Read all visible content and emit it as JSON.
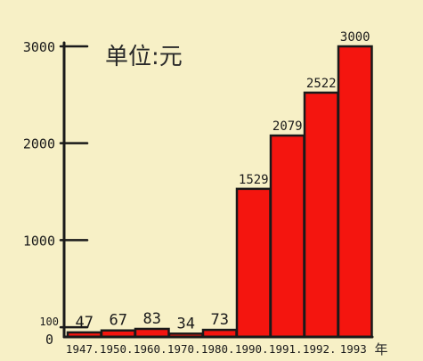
{
  "chart_data": {
    "type": "bar",
    "title": "单位:元",
    "categories": [
      "1947",
      "1950",
      "1960",
      "1970",
      "1980",
      "1990",
      "1991",
      "1992",
      "1993"
    ],
    "values": [
      47,
      67,
      83,
      34,
      73,
      1529,
      2079,
      2522,
      3000
    ],
    "data_labels": [
      "47",
      "67",
      "83",
      "34",
      "73",
      "1529",
      "2079",
      "2522",
      "3000"
    ],
    "x_tick_labels": [
      "1947.",
      "1950.",
      "1960.",
      "1970.",
      "1980.",
      "1990.",
      "1991.",
      "1992.",
      "1993"
    ],
    "x_unit": "年",
    "y_ticks": [
      0,
      100,
      1000,
      2000,
      3000
    ],
    "y_tick_labels": [
      "0",
      "100",
      "1000",
      "2000",
      "3000"
    ],
    "ylim": [
      0,
      3000
    ],
    "grid": false,
    "colors": {
      "bar": "#f4150f",
      "ink": "#1a1a1a",
      "background": "#f7f0c6"
    }
  }
}
